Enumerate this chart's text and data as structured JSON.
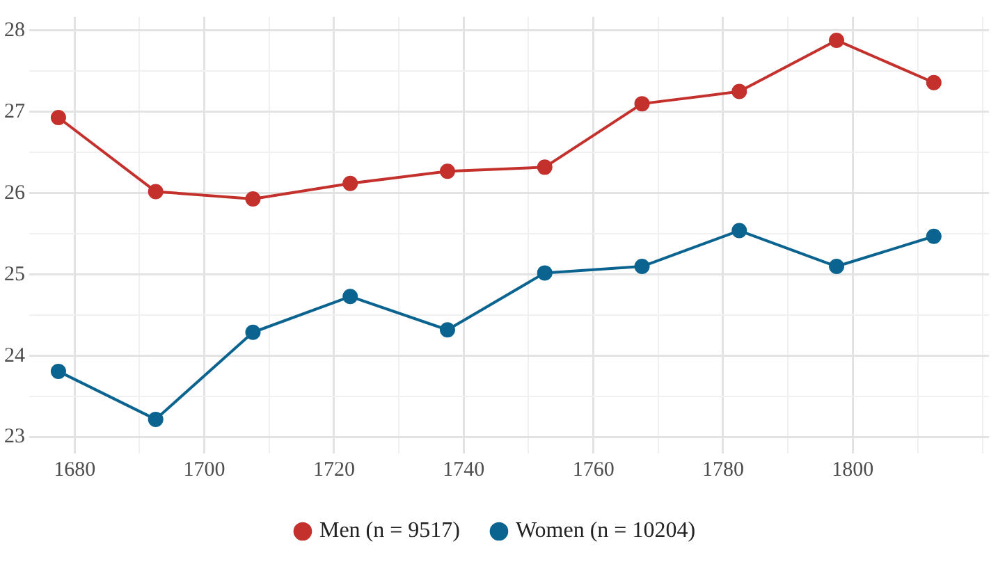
{
  "chart_data": {
    "type": "line",
    "x": [
      1677.5,
      1692.5,
      1707.5,
      1722.5,
      1737.5,
      1752.5,
      1767.5,
      1782.5,
      1797.5,
      1812.5
    ],
    "series": [
      {
        "name": "Men (n = 9517)",
        "color": "#c4302b",
        "values": [
          26.93,
          26.02,
          25.93,
          26.12,
          26.27,
          26.32,
          27.1,
          27.25,
          27.88,
          27.36
        ]
      },
      {
        "name": "Women (n = 10204)",
        "color": "#0b6490",
        "values": [
          23.81,
          23.22,
          24.29,
          24.73,
          24.32,
          25.02,
          25.1,
          25.54,
          25.1,
          25.47
        ]
      }
    ],
    "xlim": [
      1673,
      1821
    ],
    "ylim": [
      22.8,
      28.17
    ],
    "xticks": [
      1680,
      {
        "value": 1690,
        "label": null
      },
      1700,
      {
        "value": 1710,
        "label": null
      },
      1720,
      {
        "value": 1730,
        "label": null
      },
      1740,
      {
        "value": 1750,
        "label": null
      },
      1760,
      {
        "value": 1770,
        "label": null
      },
      1780,
      {
        "value": 1790,
        "label": null
      },
      1800,
      {
        "value": 1810,
        "label": null
      },
      {
        "value": 1820,
        "label": null
      }
    ],
    "yticks": [
      23,
      {
        "value": 23.5,
        "label": null
      },
      24,
      {
        "value": 24.5,
        "label": null
      },
      25,
      {
        "value": 25.5,
        "label": null
      },
      26,
      {
        "value": 26.5,
        "label": null
      },
      27,
      {
        "value": 27.5,
        "label": null
      },
      28
    ],
    "grid": true,
    "legend": "bottom",
    "marker": "circle",
    "line_style": "solid"
  }
}
